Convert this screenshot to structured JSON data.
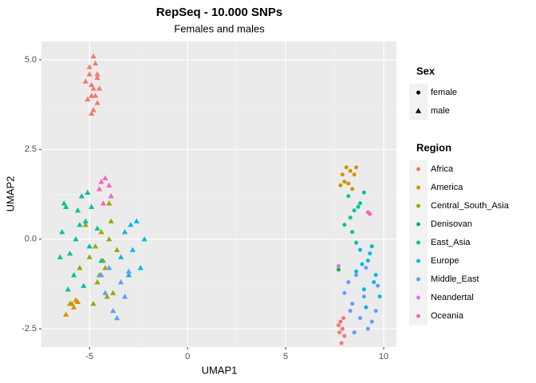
{
  "chart_data": {
    "type": "scatter",
    "title": "RepSeq - 10.000 SNPs",
    "subtitle": "Females and males",
    "x_label": "UMAP1",
    "y_label": "UMAP2",
    "xlim": [
      -7.45,
      10.65
    ],
    "ylim": [
      -3.01,
      5.51
    ],
    "xticks": [
      -5,
      0,
      5,
      10
    ],
    "yticks": [
      -2.5,
      {
        "value": 0,
        "label": "0.0"
      },
      2.5,
      {
        "value": 5,
        "label": "5.0"
      }
    ],
    "minor_xticks": [
      -2.5,
      2.5,
      7.5
    ],
    "minor_yticks": [
      -1.25,
      1.25,
      3.75
    ],
    "grid": true,
    "legend_position": "right",
    "shape_legend": {
      "title": "Sex",
      "labels": [
        "female",
        "male"
      ]
    },
    "color_legend_title": "Region",
    "series": [
      {
        "name": "Africa",
        "color": "#F8766D",
        "x": [
          -5.0,
          -4.8,
          -4.6,
          -5.2,
          -4.9,
          -4.7,
          -4.5,
          -5.1,
          -4.8,
          -4.6,
          -4.9,
          -5.0,
          -4.7,
          -4.8,
          -4.6,
          -4.9,
          7.8,
          7.9,
          7.7,
          8.0,
          7.85,
          7.75,
          7.95
        ],
        "y": [
          4.8,
          5.1,
          4.6,
          4.4,
          4.3,
          4.0,
          4.2,
          3.9,
          3.6,
          3.8,
          3.5,
          4.6,
          4.9,
          4.2,
          4.5,
          4.0,
          -2.3,
          -2.5,
          -2.4,
          -2.7,
          -2.9,
          -2.6,
          -2.2
        ],
        "sex": [
          "male",
          "male",
          "male",
          "male",
          "male",
          "male",
          "male",
          "male",
          "male",
          "male",
          "male",
          "male",
          "male",
          "male",
          "male",
          "male",
          "female",
          "female",
          "female",
          "female",
          "female",
          "female",
          "female"
        ]
      },
      {
        "name": "America",
        "color": "#D39200",
        "x": [
          -6.0,
          -5.8,
          -5.7,
          -6.2,
          -5.9,
          -5.6,
          7.9,
          8.1,
          8.3,
          8.0,
          8.5,
          7.8,
          8.2,
          8.6,
          8.4
        ],
        "y": [
          -1.8,
          -1.9,
          -1.7,
          -2.1,
          -1.8,
          -1.75,
          1.8,
          2.0,
          1.9,
          1.6,
          1.8,
          1.5,
          1.55,
          2.0,
          1.4
        ],
        "sex": [
          "male",
          "male",
          "male",
          "male",
          "male",
          "male",
          "female",
          "female",
          "female",
          "female",
          "female",
          "female",
          "female",
          "female",
          "female"
        ]
      },
      {
        "name": "Central_South_Asia",
        "color": "#93AA00",
        "x": [
          -5.0,
          -4.6,
          -4.2,
          -3.8,
          -4.4,
          -4.8,
          -4.0,
          -3.6,
          -4.5,
          -5.2,
          -4.1,
          -4.7,
          -3.9,
          -4.3,
          -4.0,
          -5.5
        ],
        "y": [
          -0.5,
          -1.2,
          -0.8,
          -1.5,
          0.2,
          -1.8,
          0.0,
          -0.3,
          -1.0,
          0.4,
          -1.6,
          -0.2,
          0.5,
          -0.6,
          1.0,
          -0.8
        ],
        "sex": [
          "male",
          "male",
          "male",
          "male",
          "male",
          "male",
          "male",
          "male",
          "male",
          "male",
          "male",
          "male",
          "male",
          "male",
          "male",
          "male"
        ]
      },
      {
        "name": "Denisovan",
        "color": "#00BA38",
        "x": [
          7.7
        ],
        "y": [
          -0.85
        ],
        "sex": [
          "female"
        ]
      },
      {
        "name": "East_Asia",
        "color": "#00C19F",
        "x": [
          -6.4,
          -6.0,
          -5.6,
          -5.2,
          -5.8,
          -6.2,
          -5.4,
          -5.0,
          -4.6,
          -6.5,
          -5.7,
          -5.3,
          -4.9,
          -6.1,
          -5.5,
          -4.4,
          -6.3,
          -5.1,
          8.2,
          8.5,
          8.8,
          8.0,
          8.4,
          9.0,
          8.6,
          8.3,
          8.7
        ],
        "y": [
          0.2,
          -0.4,
          0.8,
          0.5,
          -1.0,
          0.9,
          1.2,
          -0.2,
          0.3,
          -0.5,
          0.0,
          -1.3,
          0.9,
          -1.4,
          0.4,
          -0.6,
          1.0,
          1.3,
          1.2,
          0.8,
          1.0,
          0.4,
          0.2,
          1.3,
          -0.1,
          0.6,
          0.9
        ],
        "sex": [
          "male",
          "male",
          "male",
          "male",
          "male",
          "male",
          "male",
          "male",
          "male",
          "male",
          "male",
          "male",
          "male",
          "male",
          "male",
          "male",
          "male",
          "male",
          "female",
          "female",
          "female",
          "female",
          "female",
          "female",
          "female",
          "female",
          "female"
        ]
      },
      {
        "name": "Europe",
        "color": "#00B9E3",
        "x": [
          -3.2,
          -2.8,
          -2.4,
          -3.0,
          -2.6,
          -3.4,
          -2.2,
          -2.9,
          8.8,
          9.2,
          9.6,
          9.0,
          8.6,
          9.4,
          9.8,
          9.1,
          8.9,
          9.5,
          9.3
        ],
        "y": [
          0.2,
          -0.3,
          -0.8,
          -1.0,
          0.5,
          -0.5,
          0.0,
          0.4,
          -0.3,
          -0.6,
          -1.0,
          -1.4,
          -0.9,
          -0.2,
          -1.6,
          -1.9,
          -0.7,
          -1.2,
          -0.4
        ],
        "sex": [
          "male",
          "male",
          "male",
          "male",
          "male",
          "male",
          "male",
          "male",
          "female",
          "female",
          "female",
          "female",
          "female",
          "female",
          "female",
          "female",
          "female",
          "female",
          "female"
        ]
      },
      {
        "name": "Middle_East",
        "color": "#619CFF",
        "x": [
          -4.2,
          -3.8,
          -3.4,
          -4.0,
          -3.6,
          -3.2,
          -4.4,
          -3.0,
          8.0,
          8.4,
          8.8,
          9.2,
          9.6,
          8.2,
          8.6,
          9.0,
          9.4,
          8.5,
          9.1,
          9.7,
          8.3
        ],
        "y": [
          -1.5,
          -2.0,
          -1.2,
          -0.8,
          -2.2,
          -1.6,
          -1.0,
          -0.9,
          -1.5,
          -1.8,
          -2.2,
          -2.5,
          -2.0,
          -1.2,
          -1.0,
          -1.6,
          -2.3,
          -2.6,
          -0.8,
          -1.3,
          -2.0
        ],
        "sex": [
          "male",
          "male",
          "male",
          "male",
          "male",
          "male",
          "male",
          "male",
          "female",
          "female",
          "female",
          "female",
          "female",
          "female",
          "female",
          "female",
          "female",
          "female",
          "female",
          "female",
          "female"
        ]
      },
      {
        "name": "Neandertal",
        "color": "#DB72FB",
        "x": [
          7.7
        ],
        "y": [
          -0.75
        ],
        "sex": [
          "female"
        ]
      },
      {
        "name": "Oceania",
        "color": "#FF61C3",
        "x": [
          -4.4,
          -4.2,
          -4.0,
          -4.5,
          -3.9,
          -4.3,
          9.2,
          9.3
        ],
        "y": [
          1.6,
          1.7,
          1.5,
          1.4,
          1.2,
          1.0,
          0.75,
          0.7
        ],
        "sex": [
          "male",
          "male",
          "male",
          "male",
          "male",
          "male",
          "female",
          "female"
        ]
      }
    ]
  }
}
